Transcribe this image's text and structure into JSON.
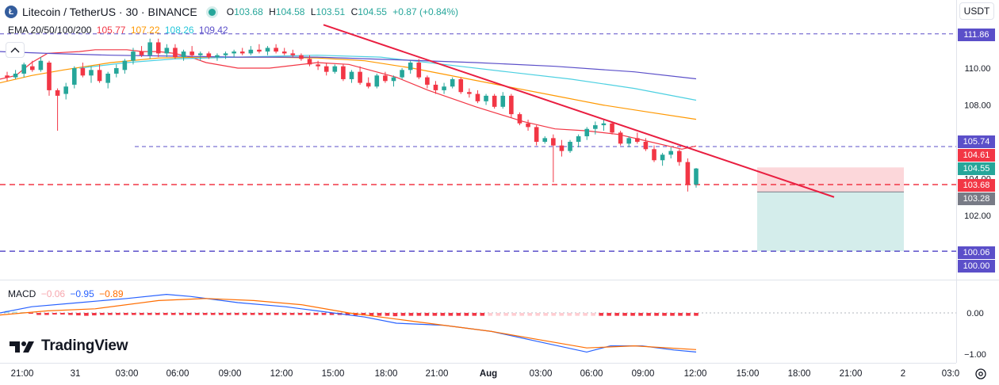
{
  "header": {
    "logo_letter": "Ł",
    "title": "Litecoin / TetherUS · 30 · BINANCE",
    "ohlc": [
      {
        "label": "O",
        "value": "103.68"
      },
      {
        "label": "H",
        "value": "104.58"
      },
      {
        "label": "L",
        "value": "103.51"
      },
      {
        "label": "C",
        "value": "104.55"
      }
    ],
    "change": "+0.87 (+0.84%)"
  },
  "ema": {
    "label": "EMA 20/50/100/200",
    "values": [
      "105.77",
      "107.22",
      "108.26",
      "109.42"
    ],
    "colors": [
      "#f23645",
      "#ff9800",
      "#4dd0e1",
      "#5b4fc9"
    ]
  },
  "currency": "USDT",
  "macd": {
    "label": "MACD",
    "values": [
      "−0.06",
      "−0.95",
      "−0.89"
    ],
    "colors": [
      "#f7a6ad",
      "#2962ff",
      "#ff6d00"
    ]
  },
  "brand": "TradingView",
  "price_axis": {
    "ticks": [
      "110.00",
      "108.00",
      "104.00",
      "102.00"
    ],
    "tags": [
      {
        "value": "111.86",
        "color": "#5b4fc9"
      },
      {
        "value": "105.74",
        "color": "#5b4fc9"
      },
      {
        "value": "104.61",
        "color": "#f23645"
      },
      {
        "value": "104.55",
        "color": "#26a69a"
      },
      {
        "value": "103.68",
        "color": "#f23645"
      },
      {
        "value": "103.28",
        "color": "#787b86"
      },
      {
        "value": "100.06",
        "color": "#5b4fc9"
      },
      {
        "value": "100.00",
        "color": "#5b4fc9"
      }
    ]
  },
  "macd_axis": {
    "ticks": [
      "0.00",
      "−1.00"
    ]
  },
  "time_axis": {
    "labels": [
      "21:00",
      "31",
      "03:00",
      "06:00",
      "09:00",
      "12:00",
      "15:00",
      "18:00",
      "21:00",
      "Aug",
      "03:00",
      "06:00",
      "09:00",
      "12:00",
      "15:00",
      "18:00",
      "21:00",
      "2",
      "03:0"
    ],
    "bold": [
      "Aug"
    ]
  },
  "chart_data": {
    "type": "candlestick",
    "ylim": [
      99.5,
      112.4
    ],
    "candles": [
      [
        109.6,
        109.8,
        109.3,
        109.5
      ],
      [
        109.5,
        109.9,
        109.4,
        109.7
      ],
      [
        109.7,
        110.3,
        109.5,
        110.2
      ],
      [
        110.1,
        110.4,
        109.8,
        109.9
      ],
      [
        109.9,
        110.6,
        109.8,
        110.4
      ],
      [
        110.3,
        110.4,
        108.5,
        108.8
      ],
      [
        108.8,
        108.9,
        106.6,
        108.5
      ],
      [
        108.6,
        109.2,
        108.3,
        109.0
      ],
      [
        109.1,
        110.1,
        108.9,
        110.0
      ],
      [
        110.0,
        110.3,
        109.5,
        109.6
      ],
      [
        109.6,
        110.1,
        109.2,
        109.9
      ],
      [
        109.9,
        110.2,
        109.2,
        109.3
      ],
      [
        109.2,
        109.8,
        108.9,
        109.7
      ],
      [
        109.7,
        110.2,
        109.5,
        110.0
      ],
      [
        109.9,
        110.5,
        109.7,
        110.4
      ],
      [
        110.4,
        111.1,
        110.2,
        110.9
      ],
      [
        110.9,
        111.2,
        110.6,
        110.7
      ],
      [
        110.7,
        111.6,
        110.5,
        111.4
      ],
      [
        111.4,
        111.6,
        110.6,
        110.8
      ],
      [
        110.8,
        111.3,
        110.6,
        111.1
      ],
      [
        111.1,
        111.3,
        110.5,
        110.6
      ],
      [
        110.6,
        111.0,
        110.4,
        110.9
      ],
      [
        110.9,
        111.2,
        110.6,
        110.7
      ],
      [
        110.7,
        110.9,
        110.4,
        110.8
      ],
      [
        110.8,
        110.9,
        110.5,
        110.6
      ],
      [
        110.6,
        110.8,
        110.4,
        110.7
      ],
      [
        110.7,
        110.9,
        110.5,
        110.8
      ],
      [
        110.8,
        111.0,
        110.6,
        110.9
      ],
      [
        110.9,
        111.1,
        110.7,
        110.8
      ],
      [
        110.8,
        111.2,
        110.7,
        111.0
      ],
      [
        111.0,
        111.3,
        110.8,
        110.9
      ],
      [
        110.9,
        111.2,
        110.7,
        111.1
      ],
      [
        111.1,
        111.3,
        110.8,
        110.9
      ],
      [
        110.9,
        111.1,
        110.7,
        110.8
      ],
      [
        110.8,
        111.0,
        110.6,
        110.7
      ],
      [
        110.7,
        110.8,
        110.4,
        110.5
      ],
      [
        110.5,
        110.7,
        110.1,
        110.2
      ],
      [
        110.2,
        110.4,
        109.9,
        110.1
      ],
      [
        110.1,
        110.3,
        109.6,
        109.8
      ],
      [
        109.8,
        110.2,
        109.7,
        110.1
      ],
      [
        110.1,
        110.2,
        109.3,
        109.4
      ],
      [
        109.4,
        109.9,
        109.2,
        109.8
      ],
      [
        109.8,
        110.1,
        109.1,
        109.2
      ],
      [
        109.2,
        109.5,
        108.9,
        109.0
      ],
      [
        109.0,
        109.7,
        108.9,
        109.6
      ],
      [
        109.6,
        109.8,
        109.2,
        109.3
      ],
      [
        109.3,
        109.6,
        109.0,
        109.5
      ],
      [
        109.5,
        110.0,
        109.4,
        109.9
      ],
      [
        109.9,
        110.4,
        109.7,
        110.3
      ],
      [
        110.3,
        110.5,
        109.4,
        109.5
      ],
      [
        109.5,
        109.6,
        108.9,
        109.1
      ],
      [
        109.1,
        109.3,
        108.6,
        108.8
      ],
      [
        108.8,
        109.2,
        108.6,
        109.0
      ],
      [
        109.0,
        109.5,
        108.9,
        109.4
      ],
      [
        109.4,
        109.5,
        108.6,
        108.7
      ],
      [
        108.7,
        108.9,
        108.4,
        108.6
      ],
      [
        108.6,
        108.8,
        108.1,
        108.2
      ],
      [
        108.2,
        108.6,
        108.0,
        108.5
      ],
      [
        108.5,
        108.6,
        107.8,
        107.9
      ],
      [
        107.9,
        108.7,
        107.8,
        108.5
      ],
      [
        108.5,
        108.6,
        107.3,
        107.5
      ],
      [
        107.5,
        107.6,
        106.9,
        107.0
      ],
      [
        107.0,
        107.2,
        106.6,
        106.8
      ],
      [
        106.8,
        106.9,
        105.8,
        106.0
      ],
      [
        106.0,
        106.3,
        105.9,
        106.2
      ],
      [
        106.2,
        106.4,
        103.8,
        105.8
      ],
      [
        105.8,
        106.1,
        105.2,
        105.5
      ],
      [
        105.5,
        106.1,
        105.4,
        106.0
      ],
      [
        106.0,
        106.4,
        105.7,
        106.3
      ],
      [
        106.3,
        106.8,
        106.1,
        106.7
      ],
      [
        106.7,
        107.1,
        106.4,
        106.9
      ],
      [
        106.9,
        107.2,
        106.6,
        107.0
      ],
      [
        107.0,
        107.1,
        106.4,
        106.5
      ],
      [
        106.5,
        106.6,
        105.8,
        105.9
      ],
      [
        105.9,
        106.3,
        105.7,
        106.2
      ],
      [
        106.2,
        106.5,
        105.9,
        106.0
      ],
      [
        106.0,
        106.2,
        105.5,
        105.6
      ],
      [
        105.6,
        105.8,
        104.9,
        105.0
      ],
      [
        105.0,
        105.4,
        104.7,
        105.3
      ],
      [
        105.3,
        105.7,
        105.1,
        105.5
      ],
      [
        105.5,
        105.6,
        104.7,
        104.9
      ],
      [
        104.9,
        105.1,
        103.3,
        103.7
      ],
      [
        103.68,
        104.58,
        103.51,
        104.55
      ]
    ],
    "ema_series": [
      {
        "name": "EMA 20",
        "color": "#f23645",
        "values": [
          [
            0,
            109.4
          ],
          [
            20,
            109.6
          ],
          [
            40,
            110.3
          ],
          [
            60,
            110.8
          ],
          [
            80,
            110.85
          ],
          [
            100,
            110.9
          ],
          [
            120,
            111.0
          ],
          [
            140,
            111.0
          ],
          [
            160,
            111.0
          ],
          [
            180,
            110.9
          ],
          [
            200,
            110.9
          ],
          [
            220,
            110.8
          ],
          [
            240,
            110.6
          ],
          [
            260,
            110.3
          ],
          [
            300,
            110.0
          ],
          [
            340,
            110.0
          ],
          [
            400,
            110.3
          ],
          [
            440,
            110.2
          ],
          [
            500,
            109.5
          ],
          [
            540,
            108.8
          ],
          [
            600,
            107.9
          ],
          [
            660,
            107.1
          ],
          [
            700,
            106.7
          ],
          [
            740,
            106.6
          ],
          [
            780,
            106.4
          ],
          [
            820,
            106.0
          ],
          [
            860,
            105.6
          ],
          [
            878,
            105.77
          ]
        ]
      },
      {
        "name": "EMA 50",
        "color": "#ff9800",
        "values": [
          [
            0,
            109.2
          ],
          [
            40,
            109.6
          ],
          [
            80,
            109.9
          ],
          [
            140,
            110.3
          ],
          [
            200,
            110.55
          ],
          [
            260,
            110.6
          ],
          [
            340,
            110.6
          ],
          [
            400,
            110.55
          ],
          [
            460,
            110.4
          ],
          [
            520,
            110.0
          ],
          [
            580,
            109.5
          ],
          [
            640,
            109.0
          ],
          [
            700,
            108.5
          ],
          [
            760,
            108.0
          ],
          [
            820,
            107.6
          ],
          [
            878,
            107.22
          ]
        ]
      },
      {
        "name": "EMA 100",
        "color": "#4dd0e1",
        "values": [
          [
            100,
            110.0
          ],
          [
            160,
            110.3
          ],
          [
            220,
            110.5
          ],
          [
            300,
            110.6
          ],
          [
            400,
            110.7
          ],
          [
            480,
            110.6
          ],
          [
            560,
            110.2
          ],
          [
            640,
            109.8
          ],
          [
            720,
            109.4
          ],
          [
            800,
            108.9
          ],
          [
            878,
            108.26
          ]
        ]
      },
      {
        "name": "EMA 200",
        "color": "#5b4fc9",
        "values": [
          [
            0,
            110.9
          ],
          [
            60,
            110.8
          ],
          [
            140,
            110.7
          ],
          [
            220,
            110.65
          ],
          [
            300,
            110.6
          ],
          [
            400,
            110.6
          ],
          [
            500,
            110.45
          ],
          [
            600,
            110.3
          ],
          [
            700,
            110.1
          ],
          [
            800,
            109.8
          ],
          [
            878,
            109.42
          ]
        ]
      }
    ],
    "horizontal_levels": [
      {
        "value": 111.86,
        "color": "#5b4fc9",
        "style": "dashed"
      },
      {
        "value": 105.74,
        "color": "#5b4fc9",
        "style": "dashed"
      },
      {
        "value": 103.68,
        "color": "#f23645",
        "style": "dashed"
      },
      {
        "value": 100.06,
        "color": "#5b4fc9",
        "style": "dashed"
      }
    ],
    "trendline": {
      "color": "#e91e40",
      "from": [
        408,
        112.35
      ],
      "to": [
        1052,
        103.0
      ]
    },
    "position_box": {
      "x1": 955,
      "x2": 1140,
      "stop": 104.61,
      "entry": 103.28,
      "target": 100.06
    },
    "macd_histogram": [
      0.05,
      0.03,
      0.02,
      -0.02,
      -0.05,
      -0.05,
      -0.04,
      -0.04,
      -0.05,
      -0.06,
      -0.07,
      -0.06,
      -0.05,
      -0.05,
      -0.05,
      -0.05,
      -0.05,
      -0.05,
      -0.05,
      -0.05,
      -0.05,
      -0.05,
      -0.05,
      -0.05,
      -0.05,
      -0.05,
      -0.05,
      -0.05,
      -0.05,
      -0.05,
      -0.05,
      -0.05,
      -0.05,
      -0.05,
      -0.05,
      -0.05,
      -0.05,
      -0.05,
      -0.05,
      -0.05,
      -0.05,
      -0.05,
      -0.05,
      -0.06,
      -0.06,
      -0.06,
      -0.07,
      -0.07,
      -0.07,
      -0.08,
      -0.07,
      -0.07,
      -0.07,
      -0.07,
      -0.07,
      -0.07,
      -0.07,
      -0.07,
      -0.07,
      -0.07,
      -0.07,
      -0.07,
      -0.07,
      -0.07,
      -0.07,
      -0.07,
      -0.07,
      -0.07,
      -0.07,
      -0.07,
      -0.07,
      -0.07,
      -0.07,
      -0.07,
      -0.07,
      -0.07,
      -0.07,
      -0.07,
      -0.07,
      -0.07,
      -0.07,
      -0.07,
      -0.07,
      -0.07,
      -0.07,
      -0.07,
      -0.07,
      -0.07
    ],
    "macd_line": [
      [
        0,
        0.0
      ],
      [
        40,
        0.15
      ],
      [
        100,
        0.25
      ],
      [
        160,
        0.35
      ],
      [
        210,
        0.45
      ],
      [
        240,
        0.4
      ],
      [
        300,
        0.25
      ],
      [
        360,
        0.15
      ],
      [
        400,
        0.05
      ],
      [
        460,
        -0.1
      ],
      [
        500,
        -0.25
      ],
      [
        560,
        -0.3
      ],
      [
        620,
        -0.45
      ],
      [
        680,
        -0.7
      ],
      [
        740,
        -0.95
      ],
      [
        770,
        -0.8
      ],
      [
        810,
        -0.8
      ],
      [
        850,
        -0.9
      ],
      [
        878,
        -0.95
      ]
    ],
    "signal_line": [
      [
        0,
        -0.05
      ],
      [
        60,
        0.05
      ],
      [
        120,
        0.1
      ],
      [
        200,
        0.3
      ],
      [
        260,
        0.35
      ],
      [
        320,
        0.3
      ],
      [
        380,
        0.2
      ],
      [
        440,
        0.0
      ],
      [
        500,
        -0.15
      ],
      [
        560,
        -0.3
      ],
      [
        620,
        -0.45
      ],
      [
        680,
        -0.65
      ],
      [
        740,
        -0.85
      ],
      [
        800,
        -0.8
      ],
      [
        878,
        -0.89
      ]
    ]
  }
}
